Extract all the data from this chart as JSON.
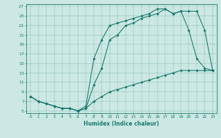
{
  "xlabel": "Humidex (Indice chaleur)",
  "background_color": "#cce8e4",
  "line_color": "#1a7a6e",
  "xlim": [
    -0.5,
    23.5
  ],
  "ylim": [
    4.5,
    27.5
  ],
  "xticks": [
    0,
    1,
    2,
    3,
    4,
    5,
    6,
    7,
    8,
    9,
    10,
    11,
    12,
    13,
    14,
    15,
    16,
    17,
    18,
    19,
    20,
    21,
    22,
    23
  ],
  "yticks": [
    5,
    7,
    9,
    11,
    13,
    15,
    17,
    19,
    21,
    23,
    25,
    27
  ],
  "line1_x": [
    0,
    1,
    2,
    3,
    4,
    5,
    6,
    7,
    8,
    9,
    10,
    11,
    12,
    13,
    14,
    15,
    16,
    17,
    18,
    19,
    20,
    21,
    22,
    23
  ],
  "line1_y": [
    8,
    7,
    6.5,
    6,
    5.5,
    5.5,
    5.0,
    6.0,
    16,
    20,
    23,
    23.5,
    24,
    24.5,
    25,
    25.5,
    26.5,
    26.5,
    25.5,
    26,
    22,
    16,
    14,
    13.5
  ],
  "line2_x": [
    0,
    1,
    2,
    3,
    4,
    5,
    6,
    7,
    8,
    9,
    10,
    11,
    12,
    13,
    14,
    15,
    16,
    17,
    18,
    19,
    20,
    21,
    22,
    23
  ],
  "line2_y": [
    8,
    7,
    6.5,
    6,
    5.5,
    5.5,
    5.0,
    5.5,
    10.5,
    14,
    20,
    21,
    23,
    23.5,
    24.5,
    25,
    25.5,
    26.5,
    25.5,
    26,
    26,
    26,
    22,
    13.5
  ],
  "line3_x": [
    0,
    1,
    2,
    3,
    4,
    5,
    6,
    7,
    8,
    9,
    10,
    11,
    12,
    13,
    14,
    15,
    16,
    17,
    18,
    19,
    20,
    21,
    22,
    23
  ],
  "line3_y": [
    8,
    7,
    6.5,
    6,
    5.5,
    5.5,
    5.0,
    5.5,
    7,
    8,
    9,
    9.5,
    10,
    10.5,
    11,
    11.5,
    12,
    12.5,
    13,
    13.5,
    13.5,
    13.5,
    13.5,
    13.5
  ]
}
